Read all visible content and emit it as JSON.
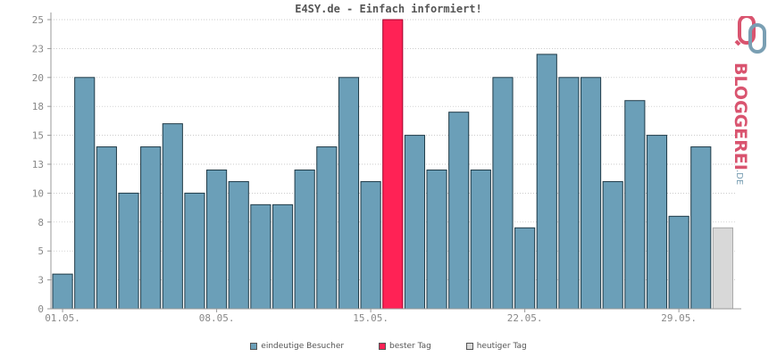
{
  "title": "E4SY.de - Einfach informiert!",
  "colors": {
    "normal": "#6b9fb8",
    "best": "#ff2255",
    "today": "#d8d8d8",
    "grid": "#bbbbbb",
    "axis": "#999999"
  },
  "legend": {
    "visitors": "eindeutige Besucher",
    "best": "bester Tag",
    "today": "heutiger Tag"
  },
  "logo": {
    "main": "BLOGGEREI",
    "suffix": ".DE"
  },
  "chart_data": {
    "type": "bar",
    "title": "E4SY.de - Einfach informiert!",
    "ylim": [
      0,
      25
    ],
    "yticks": [
      "0",
      "3",
      "5",
      "8",
      "10",
      "13",
      "15",
      "18",
      "20",
      "23",
      "25"
    ],
    "xtick_labels": [
      "01.05.",
      "08.05.",
      "15.05.",
      "22.05.",
      "29.05."
    ],
    "xtick_positions": [
      1,
      8,
      15,
      22,
      29
    ],
    "categories": [
      1,
      2,
      3,
      4,
      5,
      6,
      7,
      8,
      9,
      10,
      11,
      12,
      13,
      14,
      15,
      16,
      17,
      18,
      19,
      20,
      21,
      22,
      23,
      24,
      25,
      26,
      27,
      28,
      29,
      30,
      31
    ],
    "values": [
      3,
      20,
      14,
      10,
      14,
      16,
      10,
      12,
      11,
      9,
      9,
      12,
      14,
      20,
      11,
      25,
      15,
      12,
      17,
      12,
      20,
      7,
      22,
      20,
      20,
      11,
      18,
      15,
      8,
      14,
      7
    ],
    "best_index": 15,
    "today_index": 30,
    "grid": true
  }
}
